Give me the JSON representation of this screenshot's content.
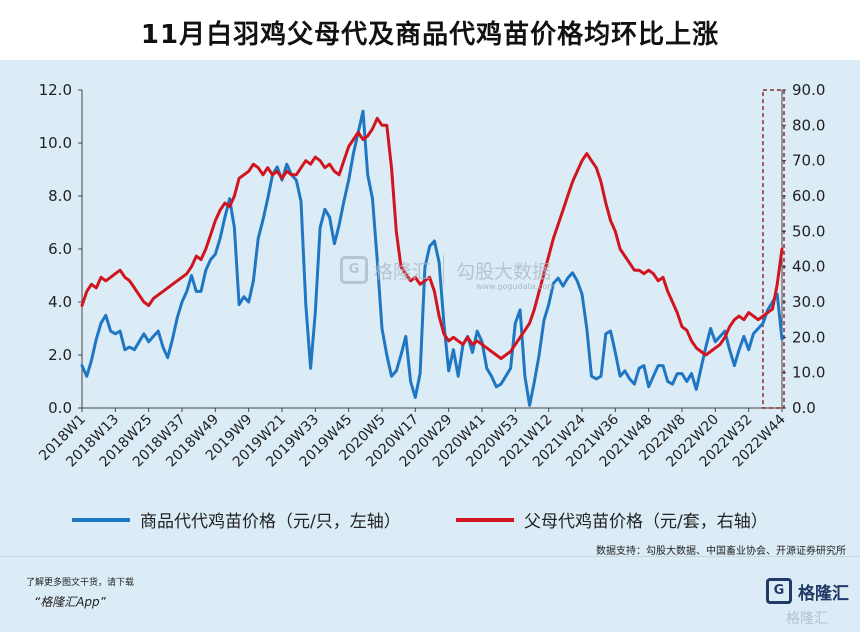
{
  "title": "11月白羽鸡父母代及商品代鸡苗价格均环比上涨",
  "legend": {
    "left": "商品代代鸡苗价格（元/只，左轴）",
    "right": "父母代鸡苗价格（元/套，右轴）"
  },
  "source": "数据支持：勾股大数据、中国畜业协会、开源证券研究所",
  "footer": {
    "note": "了解更多图文干货，请下载",
    "app": "“格隆汇App”",
    "logo_text": "格隆汇",
    "logo_icon": "gelonghui-logo-icon"
  },
  "watermark": {
    "brand": "格隆汇",
    "name": "勾股大数据",
    "url": "www.gogudata.com"
  },
  "chart_data": {
    "type": "line",
    "x_tick_labels": [
      "2018W1",
      "2018W13",
      "2018W25",
      "2018W37",
      "2018W49",
      "2019W9",
      "2019W21",
      "2019W33",
      "2019W45",
      "2020W5",
      "2020W17",
      "2020W29",
      "2020W41",
      "2020W53",
      "2021W12",
      "2021W24",
      "2021W36",
      "2021W48",
      "2022W8",
      "2022W20",
      "2022W32",
      "2022W44"
    ],
    "y_left": {
      "ticks": [
        "0.0",
        "2.0",
        "4.0",
        "6.0",
        "8.0",
        "10.0",
        "12.0"
      ],
      "range": [
        0,
        12
      ]
    },
    "y_right": {
      "ticks": [
        "0.0",
        "10.0",
        "20.0",
        "30.0",
        "40.0",
        "50.0",
        "60.0",
        "70.0",
        "80.0",
        "90.0"
      ],
      "range": [
        0,
        90
      ]
    },
    "colors": {
      "left": "#1f77c4",
      "right": "#d0151f",
      "background": "#dcecf6"
    },
    "series": [
      {
        "name": "商品代代鸡苗价格（元/只，左轴）",
        "axis": "left",
        "points": [
          [
            0,
            1.6
          ],
          [
            1,
            1.2
          ],
          [
            2,
            1.8
          ],
          [
            3,
            2.6
          ],
          [
            4,
            3.2
          ],
          [
            5,
            3.5
          ],
          [
            6,
            2.9
          ],
          [
            7,
            2.8
          ],
          [
            8,
            2.9
          ],
          [
            9,
            2.2
          ],
          [
            10,
            2.3
          ],
          [
            11,
            2.2
          ],
          [
            12,
            2.5
          ],
          [
            13,
            2.8
          ],
          [
            14,
            2.5
          ],
          [
            15,
            2.7
          ],
          [
            16,
            2.9
          ],
          [
            17,
            2.3
          ],
          [
            18,
            1.9
          ],
          [
            19,
            2.6
          ],
          [
            20,
            3.4
          ],
          [
            21,
            4.0
          ],
          [
            22,
            4.4
          ],
          [
            23,
            5.0
          ],
          [
            24,
            4.4
          ],
          [
            25,
            4.4
          ],
          [
            26,
            5.2
          ],
          [
            27,
            5.6
          ],
          [
            28,
            5.8
          ],
          [
            29,
            6.4
          ],
          [
            30,
            7.2
          ],
          [
            31,
            7.9
          ],
          [
            32,
            6.8
          ],
          [
            33,
            3.9
          ],
          [
            34,
            4.2
          ],
          [
            35,
            4.0
          ],
          [
            36,
            4.8
          ],
          [
            37,
            6.4
          ],
          [
            38,
            7.1
          ],
          [
            39,
            7.9
          ],
          [
            40,
            8.8
          ],
          [
            41,
            9.1
          ],
          [
            42,
            8.6
          ],
          [
            43,
            9.2
          ],
          [
            44,
            8.8
          ],
          [
            45,
            8.6
          ],
          [
            46,
            7.8
          ],
          [
            47,
            3.9
          ],
          [
            48,
            1.5
          ],
          [
            49,
            3.6
          ],
          [
            50,
            6.8
          ],
          [
            51,
            7.5
          ],
          [
            52,
            7.2
          ],
          [
            53,
            6.2
          ],
          [
            54,
            6.9
          ],
          [
            55,
            7.8
          ],
          [
            56,
            8.6
          ],
          [
            57,
            9.6
          ],
          [
            58,
            10.4
          ],
          [
            59,
            11.2
          ],
          [
            60,
            8.8
          ],
          [
            61,
            7.9
          ],
          [
            62,
            5.6
          ],
          [
            63,
            3.0
          ],
          [
            64,
            2.0
          ],
          [
            65,
            1.2
          ],
          [
            66,
            1.4
          ],
          [
            67,
            2.0
          ],
          [
            68,
            2.7
          ],
          [
            69,
            1.0
          ],
          [
            70,
            0.4
          ],
          [
            71,
            1.3
          ],
          [
            72,
            5.3
          ],
          [
            73,
            6.1
          ],
          [
            74,
            6.3
          ],
          [
            75,
            5.5
          ],
          [
            76,
            3.2
          ],
          [
            77,
            1.4
          ],
          [
            78,
            2.2
          ],
          [
            79,
            1.2
          ],
          [
            80,
            2.4
          ],
          [
            81,
            2.7
          ],
          [
            82,
            2.1
          ],
          [
            83,
            2.9
          ],
          [
            84,
            2.5
          ],
          [
            85,
            1.5
          ],
          [
            86,
            1.2
          ],
          [
            87,
            0.8
          ],
          [
            88,
            0.9
          ],
          [
            89,
            1.2
          ],
          [
            90,
            1.5
          ],
          [
            91,
            3.2
          ],
          [
            92,
            3.7
          ],
          [
            93,
            1.2
          ],
          [
            94,
            0.1
          ],
          [
            95,
            1.0
          ],
          [
            96,
            2.0
          ],
          [
            97,
            3.3
          ],
          [
            98,
            3.9
          ],
          [
            99,
            4.7
          ],
          [
            100,
            4.9
          ],
          [
            101,
            4.6
          ],
          [
            102,
            4.9
          ],
          [
            103,
            5.1
          ],
          [
            104,
            4.8
          ],
          [
            105,
            4.3
          ],
          [
            106,
            3.0
          ],
          [
            107,
            1.2
          ],
          [
            108,
            1.1
          ],
          [
            109,
            1.2
          ],
          [
            110,
            2.8
          ],
          [
            111,
            2.9
          ],
          [
            112,
            2.1
          ],
          [
            113,
            1.2
          ],
          [
            114,
            1.4
          ],
          [
            115,
            1.1
          ],
          [
            116,
            0.9
          ],
          [
            117,
            1.5
          ],
          [
            118,
            1.6
          ],
          [
            119,
            0.8
          ],
          [
            120,
            1.2
          ],
          [
            121,
            1.6
          ],
          [
            122,
            1.6
          ],
          [
            123,
            1.0
          ],
          [
            124,
            0.9
          ],
          [
            125,
            1.3
          ],
          [
            126,
            1.3
          ],
          [
            127,
            1.0
          ],
          [
            128,
            1.3
          ],
          [
            129,
            0.7
          ],
          [
            130,
            1.5
          ],
          [
            131,
            2.3
          ],
          [
            132,
            3.0
          ],
          [
            133,
            2.5
          ],
          [
            134,
            2.7
          ],
          [
            135,
            2.9
          ],
          [
            136,
            2.2
          ],
          [
            137,
            1.6
          ],
          [
            138,
            2.2
          ],
          [
            139,
            2.7
          ],
          [
            140,
            2.2
          ],
          [
            141,
            2.8
          ],
          [
            142,
            3.0
          ],
          [
            143,
            3.2
          ],
          [
            144,
            3.7
          ],
          [
            145,
            4.0
          ],
          [
            146,
            4.3
          ],
          [
            147,
            2.6
          ]
        ]
      },
      {
        "name": "父母代鸡苗价格（元/套，右轴）",
        "axis": "right",
        "points": [
          [
            0,
            29
          ],
          [
            1,
            33
          ],
          [
            2,
            35
          ],
          [
            3,
            34
          ],
          [
            4,
            37
          ],
          [
            5,
            36
          ],
          [
            6,
            37
          ],
          [
            7,
            38
          ],
          [
            8,
            39
          ],
          [
            9,
            37
          ],
          [
            10,
            36
          ],
          [
            11,
            34
          ],
          [
            12,
            32
          ],
          [
            13,
            30
          ],
          [
            14,
            29
          ],
          [
            15,
            31
          ],
          [
            16,
            32
          ],
          [
            17,
            33
          ],
          [
            18,
            34
          ],
          [
            19,
            35
          ],
          [
            20,
            36
          ],
          [
            21,
            37
          ],
          [
            22,
            38
          ],
          [
            23,
            40
          ],
          [
            24,
            43
          ],
          [
            25,
            42
          ],
          [
            26,
            45
          ],
          [
            27,
            49
          ],
          [
            28,
            53
          ],
          [
            29,
            56
          ],
          [
            30,
            58
          ],
          [
            31,
            57
          ],
          [
            32,
            60
          ],
          [
            33,
            65
          ],
          [
            34,
            66
          ],
          [
            35,
            67
          ],
          [
            36,
            69
          ],
          [
            37,
            68
          ],
          [
            38,
            66
          ],
          [
            39,
            68
          ],
          [
            40,
            66
          ],
          [
            41,
            67
          ],
          [
            42,
            65
          ],
          [
            43,
            67
          ],
          [
            44,
            66
          ],
          [
            45,
            66
          ],
          [
            46,
            68
          ],
          [
            47,
            70
          ],
          [
            48,
            69
          ],
          [
            49,
            71
          ],
          [
            50,
            70
          ],
          [
            51,
            68
          ],
          [
            52,
            69
          ],
          [
            53,
            67
          ],
          [
            54,
            66
          ],
          [
            55,
            70
          ],
          [
            56,
            74
          ],
          [
            57,
            76
          ],
          [
            58,
            78
          ],
          [
            59,
            76
          ],
          [
            60,
            77
          ],
          [
            61,
            79
          ],
          [
            62,
            82
          ],
          [
            63,
            80
          ],
          [
            64,
            80
          ],
          [
            65,
            68
          ],
          [
            66,
            50
          ],
          [
            67,
            40
          ],
          [
            68,
            38
          ],
          [
            69,
            36
          ],
          [
            70,
            37
          ],
          [
            71,
            35
          ],
          [
            72,
            36
          ],
          [
            73,
            37
          ],
          [
            74,
            33
          ],
          [
            75,
            26
          ],
          [
            76,
            21
          ],
          [
            77,
            19
          ],
          [
            78,
            20
          ],
          [
            79,
            19
          ],
          [
            80,
            18
          ],
          [
            81,
            20
          ],
          [
            82,
            18
          ],
          [
            83,
            19
          ],
          [
            84,
            18
          ],
          [
            85,
            17
          ],
          [
            86,
            16
          ],
          [
            87,
            15
          ],
          [
            88,
            14
          ],
          [
            89,
            15
          ],
          [
            90,
            16
          ],
          [
            91,
            18
          ],
          [
            92,
            20
          ],
          [
            93,
            22
          ],
          [
            94,
            24
          ],
          [
            95,
            28
          ],
          [
            96,
            33
          ],
          [
            97,
            38
          ],
          [
            98,
            43
          ],
          [
            99,
            48
          ],
          [
            100,
            52
          ],
          [
            101,
            56
          ],
          [
            102,
            60
          ],
          [
            103,
            64
          ],
          [
            104,
            67
          ],
          [
            105,
            70
          ],
          [
            106,
            72
          ],
          [
            107,
            70
          ],
          [
            108,
            68
          ],
          [
            109,
            64
          ],
          [
            110,
            58
          ],
          [
            111,
            53
          ],
          [
            112,
            50
          ],
          [
            113,
            45
          ],
          [
            114,
            43
          ],
          [
            115,
            41
          ],
          [
            116,
            39
          ],
          [
            117,
            39
          ],
          [
            118,
            38
          ],
          [
            119,
            39
          ],
          [
            120,
            38
          ],
          [
            121,
            36
          ],
          [
            122,
            37
          ],
          [
            123,
            33
          ],
          [
            124,
            30
          ],
          [
            125,
            27
          ],
          [
            126,
            23
          ],
          [
            127,
            22
          ],
          [
            128,
            19
          ],
          [
            129,
            17
          ],
          [
            130,
            16
          ],
          [
            131,
            15
          ],
          [
            132,
            16
          ],
          [
            133,
            17
          ],
          [
            134,
            18
          ],
          [
            135,
            20
          ],
          [
            136,
            23
          ],
          [
            137,
            25
          ],
          [
            138,
            26
          ],
          [
            139,
            25
          ],
          [
            140,
            27
          ],
          [
            141,
            26
          ],
          [
            142,
            25
          ],
          [
            143,
            26
          ],
          [
            144,
            27
          ],
          [
            145,
            28
          ],
          [
            146,
            35
          ],
          [
            147,
            45
          ]
        ]
      }
    ],
    "annotation": {
      "type": "dashed-box",
      "color": "#7a0000",
      "x_from": 143,
      "x_to": 147
    }
  }
}
